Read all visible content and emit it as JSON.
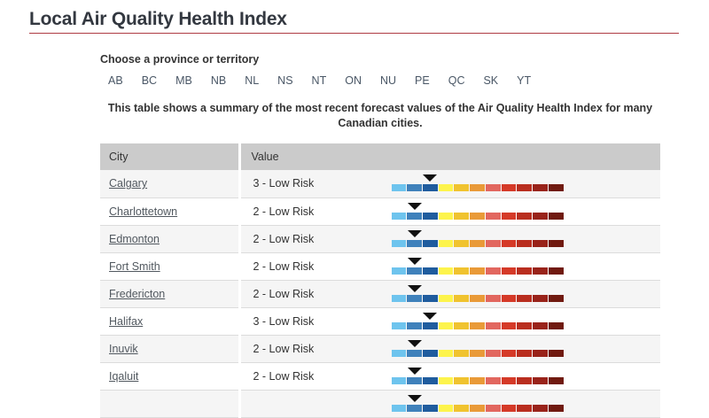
{
  "page": {
    "title": "Local Air Quality Health Index"
  },
  "province_chooser": {
    "label": "Choose a province or territory",
    "provinces": [
      "AB",
      "BC",
      "MB",
      "NB",
      "NL",
      "NS",
      "NT",
      "ON",
      "NU",
      "PE",
      "QC",
      "SK",
      "YT"
    ]
  },
  "description": "This table shows a summary of the most recent forecast values of the Air Quality Health Index for many Canadian cities.",
  "table": {
    "columns": {
      "city": "City",
      "value": "Value"
    },
    "rows": [
      {
        "city": "Calgary",
        "value_label": "3 - Low Risk",
        "aqhi": 3
      },
      {
        "city": "Charlottetown",
        "value_label": "2 - Low Risk",
        "aqhi": 2
      },
      {
        "city": "Edmonton",
        "value_label": "2 - Low Risk",
        "aqhi": 2
      },
      {
        "city": "Fort Smith",
        "value_label": "2 - Low Risk",
        "aqhi": 2
      },
      {
        "city": "Fredericton",
        "value_label": "2 - Low Risk",
        "aqhi": 2
      },
      {
        "city": "Halifax",
        "value_label": "3 - Low Risk",
        "aqhi": 3
      },
      {
        "city": "Inuvik",
        "value_label": "2 - Low Risk",
        "aqhi": 2
      },
      {
        "city": "Iqaluit",
        "value_label": "2 - Low Risk",
        "aqhi": 2
      }
    ],
    "partial_next_row": {
      "aqhi": 2
    }
  },
  "aqhi_scale": {
    "marker_icon": "down-triangle-icon",
    "segment_colors": [
      "#6ec4ee",
      "#3f81bb",
      "#1f5c9e",
      "#fdf44c",
      "#f0c32f",
      "#e99a38",
      "#e2675f",
      "#d53a28",
      "#b92e1f",
      "#99231a",
      "#701a10"
    ]
  },
  "colors": {
    "accent_line": "#af3c43",
    "header_bg": "#cbcbcb",
    "stripe_bg": "#f5f5f5",
    "marker": "#111111"
  }
}
